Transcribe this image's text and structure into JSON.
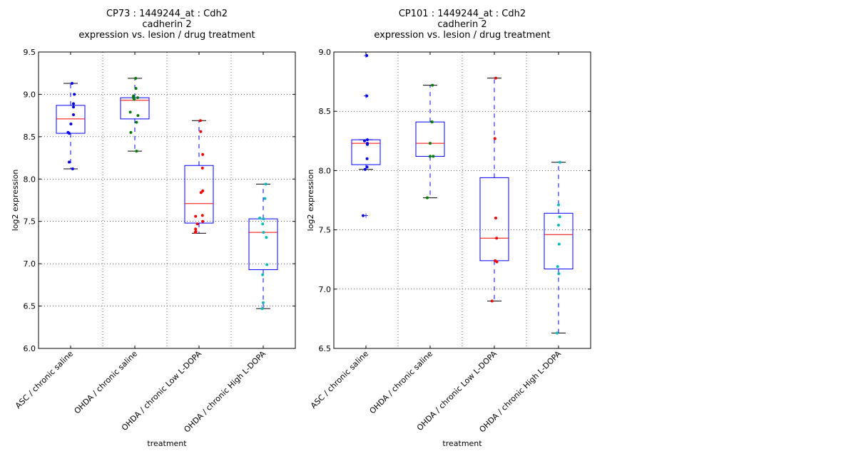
{
  "chart_data": [
    {
      "type": "box",
      "title": [
        "CP73 : 1449244_at : Cdh2",
        "cadherin 2",
        "expression vs. lesion / drug treatment"
      ],
      "xlabel": "treatment",
      "ylabel": "log2 expression",
      "ylim": [
        6.0,
        9.5
      ],
      "yticks": [
        "6.0",
        "6.5",
        "7.0",
        "7.5",
        "8.0",
        "8.5",
        "9.0",
        "9.5"
      ],
      "grid": true,
      "categories": [
        "ASC / chronic saline",
        "OHDA / chronic saline",
        "OHDA / chronic Low L-DOPA",
        "OHDA / chronic High L-DOPA"
      ],
      "boxes": [
        {
          "whislo": 8.12,
          "q1": 8.54,
          "med": 8.71,
          "q3": 8.87,
          "whishi": 9.13,
          "fliers": []
        },
        {
          "whislo": 8.33,
          "q1": 8.71,
          "med": 8.93,
          "q3": 8.96,
          "whishi": 9.19,
          "fliers": []
        },
        {
          "whislo": 7.36,
          "q1": 7.48,
          "med": 7.71,
          "q3": 8.16,
          "whishi": 8.69,
          "fliers": []
        },
        {
          "whislo": 6.47,
          "q1": 6.93,
          "med": 7.37,
          "q3": 7.53,
          "whishi": 7.94,
          "fliers": []
        }
      ],
      "points": [
        {
          "color": "#0000ff",
          "values": [
            9.13,
            9.0,
            8.89,
            8.85,
            8.76,
            8.65,
            8.55,
            8.54,
            8.2,
            8.12
          ],
          "jitter": [
            0.05,
            0.13,
            0.1,
            0.1,
            0.1,
            0.01,
            -0.09,
            -0.05,
            -0.05,
            0.07
          ]
        },
        {
          "color": "#008000",
          "values": [
            9.19,
            9.07,
            8.98,
            8.96,
            8.96,
            8.94,
            8.79,
            8.75,
            8.67,
            8.55,
            8.33
          ],
          "jitter": [
            0.03,
            0.04,
            -0.05,
            -0.05,
            0.1,
            -0.02,
            -0.16,
            0.11,
            0.06,
            -0.14,
            0.06
          ]
        },
        {
          "color": "#ff0000",
          "values": [
            8.69,
            8.56,
            8.29,
            8.13,
            7.86,
            7.84,
            7.57,
            7.56,
            7.5,
            7.47,
            7.41,
            7.38,
            7.37
          ],
          "jitter": [
            0.05,
            0.06,
            0.13,
            0.12,
            0.13,
            0.07,
            0.12,
            -0.12,
            0.13,
            -0.06,
            -0.12,
            -0.11,
            -0.13
          ]
        },
        {
          "color": "#00bfbf",
          "values": [
            7.94,
            7.77,
            7.54,
            7.53,
            7.47,
            7.37,
            7.31,
            6.99,
            6.87,
            6.54,
            6.47
          ],
          "jitter": [
            0.09,
            0.06,
            -0.12,
            0.01,
            -0.02,
            0.01,
            0.11,
            0.13,
            -0.02,
            0.0,
            -0.04
          ]
        }
      ]
    },
    {
      "type": "box",
      "title": [
        "CP101 : 1449244_at : Cdh2",
        "cadherin 2",
        "expression vs. lesion / drug treatment"
      ],
      "xlabel": "treatment",
      "ylabel": "log2 expression",
      "ylim": [
        6.5,
        9.0
      ],
      "yticks": [
        "6.5",
        "7.0",
        "7.5",
        "8.0",
        "8.5",
        "9.0"
      ],
      "grid": true,
      "categories": [
        "ASC / chronic saline",
        "OHDA / chronic saline",
        "OHDA / chronic Low L-DOPA",
        "OHDA / chronic High L-DOPA"
      ],
      "boxes": [
        {
          "whislo": 8.01,
          "q1": 8.05,
          "med": 8.23,
          "q3": 8.26,
          "whishi": 8.26,
          "fliers": [
            8.97,
            8.63,
            7.62
          ]
        },
        {
          "whislo": 7.77,
          "q1": 8.12,
          "med": 8.23,
          "q3": 8.41,
          "whishi": 8.72,
          "fliers": []
        },
        {
          "whislo": 6.9,
          "q1": 7.24,
          "med": 7.43,
          "q3": 7.94,
          "whishi": 8.78,
          "fliers": []
        },
        {
          "whislo": 6.63,
          "q1": 7.17,
          "med": 7.46,
          "q3": 7.64,
          "whishi": 8.07,
          "fliers": []
        }
      ],
      "points": [
        {
          "color": "#0000ff",
          "values": [
            8.97,
            8.63,
            8.26,
            8.25,
            8.23,
            8.22,
            8.1,
            8.03,
            8.01,
            7.62
          ],
          "jitter": [
            0.03,
            0.03,
            0.05,
            -0.05,
            0.05,
            0.05,
            0.04,
            0.04,
            -0.03,
            -0.1
          ]
        },
        {
          "color": "#008000",
          "values": [
            8.72,
            8.41,
            8.41,
            8.23,
            8.12,
            8.12,
            7.77
          ],
          "jitter": [
            0.08,
            0.07,
            0.06,
            0.0,
            0.0,
            0.11,
            -0.1
          ]
        },
        {
          "color": "#ff0000",
          "values": [
            8.78,
            8.27,
            7.6,
            7.43,
            7.24,
            7.23,
            6.9
          ],
          "jitter": [
            0.05,
            0.02,
            0.05,
            0.08,
            0.03,
            0.09,
            -0.08
          ]
        },
        {
          "color": "#00bfbf",
          "values": [
            8.07,
            7.71,
            7.61,
            7.54,
            7.38,
            7.19,
            7.13,
            6.63
          ],
          "jitter": [
            0.05,
            0.0,
            0.04,
            0.0,
            0.02,
            -0.03,
            0.01,
            -0.05
          ]
        }
      ]
    }
  ]
}
